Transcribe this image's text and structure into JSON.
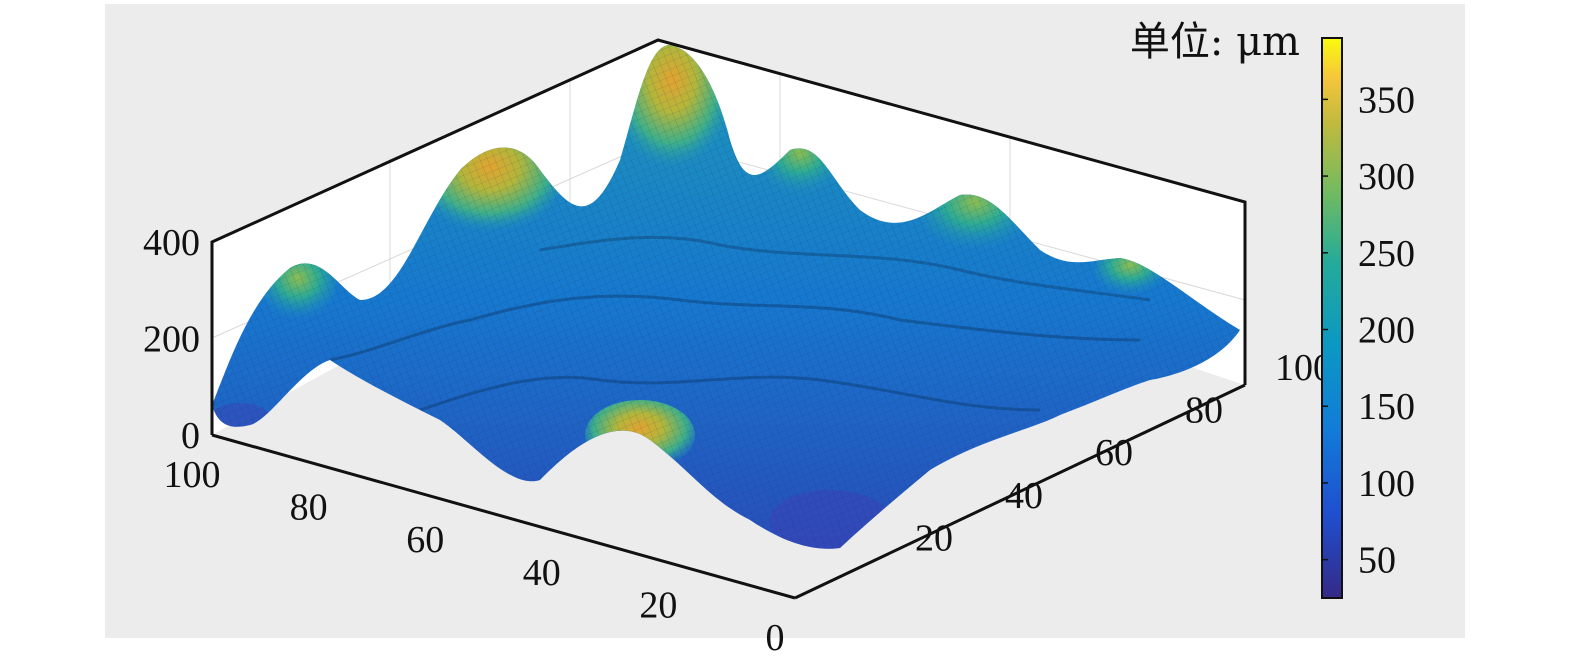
{
  "chart_data": {
    "type": "surface3d",
    "title": "",
    "xlabel": "",
    "ylabel": "",
    "zlabel": "",
    "x_ticks": [
      "100",
      "80",
      "60",
      "40",
      "20",
      "0"
    ],
    "y_ticks": [
      "20",
      "40",
      "60",
      "80",
      "100"
    ],
    "z_ticks": [
      "0",
      "200",
      "400"
    ],
    "xlim": [
      0,
      100
    ],
    "ylim": [
      0,
      100
    ],
    "zlim": [
      0,
      400
    ],
    "colorbar": {
      "unit_label": "单位: μm",
      "ticks": [
        "50",
        "100",
        "150",
        "200",
        "250",
        "300",
        "350"
      ],
      "range": [
        25,
        390
      ],
      "colormap": "parula"
    },
    "peaks": [
      {
        "x": 0,
        "y": 80,
        "z": 385
      },
      {
        "x": 0,
        "y": 50,
        "z": 360
      },
      {
        "x": 95,
        "y": 35,
        "z": 290
      },
      {
        "x": 30,
        "y": 18,
        "z": 320
      },
      {
        "x": 25,
        "y": 75,
        "z": 230
      }
    ],
    "surface_range": [
      25,
      390
    ]
  },
  "colors": {
    "background": "#ececec",
    "axis_line": "#111111",
    "grid": "#d8d8d8"
  }
}
